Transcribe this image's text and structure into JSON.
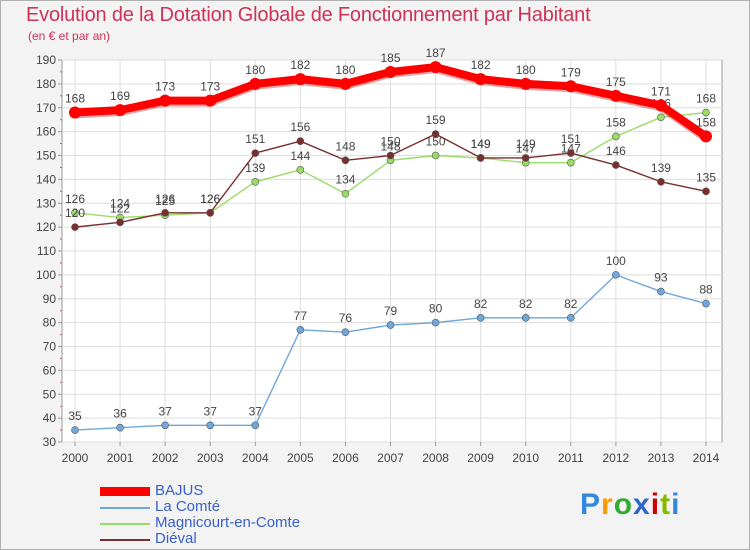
{
  "chart_data": {
    "type": "line",
    "title": "Evolution de la Dotation Globale de Fonctionnement par Habitant",
    "subtitle": "(en € et par an)",
    "xlabel": "",
    "ylabel": "",
    "ylim": [
      30,
      190
    ],
    "yticks": [
      30,
      40,
      50,
      60,
      70,
      80,
      90,
      100,
      110,
      120,
      130,
      140,
      150,
      160,
      170,
      180,
      190
    ],
    "grid": true,
    "legend_position": "bottom-left",
    "x": [
      "2000",
      "2001",
      "2002",
      "2003",
      "2004",
      "2005",
      "2006",
      "2007",
      "2008",
      "2009",
      "2010",
      "2011",
      "2012",
      "2013",
      "2014"
    ],
    "series": [
      {
        "name": "BAJUS",
        "color": "#ff0000",
        "values": [
          168,
          169,
          173,
          173,
          180,
          182,
          180,
          185,
          187,
          182,
          180,
          179,
          175,
          171,
          158
        ]
      },
      {
        "name": "La Comté",
        "color": "#6fa8dc",
        "values": [
          35,
          36,
          37,
          37,
          37,
          77,
          76,
          79,
          80,
          82,
          82,
          82,
          100,
          93,
          88
        ]
      },
      {
        "name": "Magnicourt-en-Comte",
        "color": "#99dd66",
        "values": [
          126,
          124,
          125,
          126,
          139,
          144,
          134,
          148,
          150,
          149,
          147,
          147,
          158,
          166,
          168
        ]
      },
      {
        "name": "Diéval",
        "color": "#7a2e2e",
        "values": [
          120,
          122,
          126,
          126,
          151,
          156,
          148,
          150,
          159,
          149,
          149,
          151,
          146,
          139,
          135
        ]
      }
    ]
  },
  "logo": {
    "letters": [
      "P",
      "r",
      "o",
      "x",
      "i",
      "t",
      "i"
    ],
    "colors": [
      "#3388dd",
      "#ff9900",
      "#33aa33",
      "#3366cc",
      "#cc0000",
      "#88bb00",
      "#3388dd"
    ]
  }
}
